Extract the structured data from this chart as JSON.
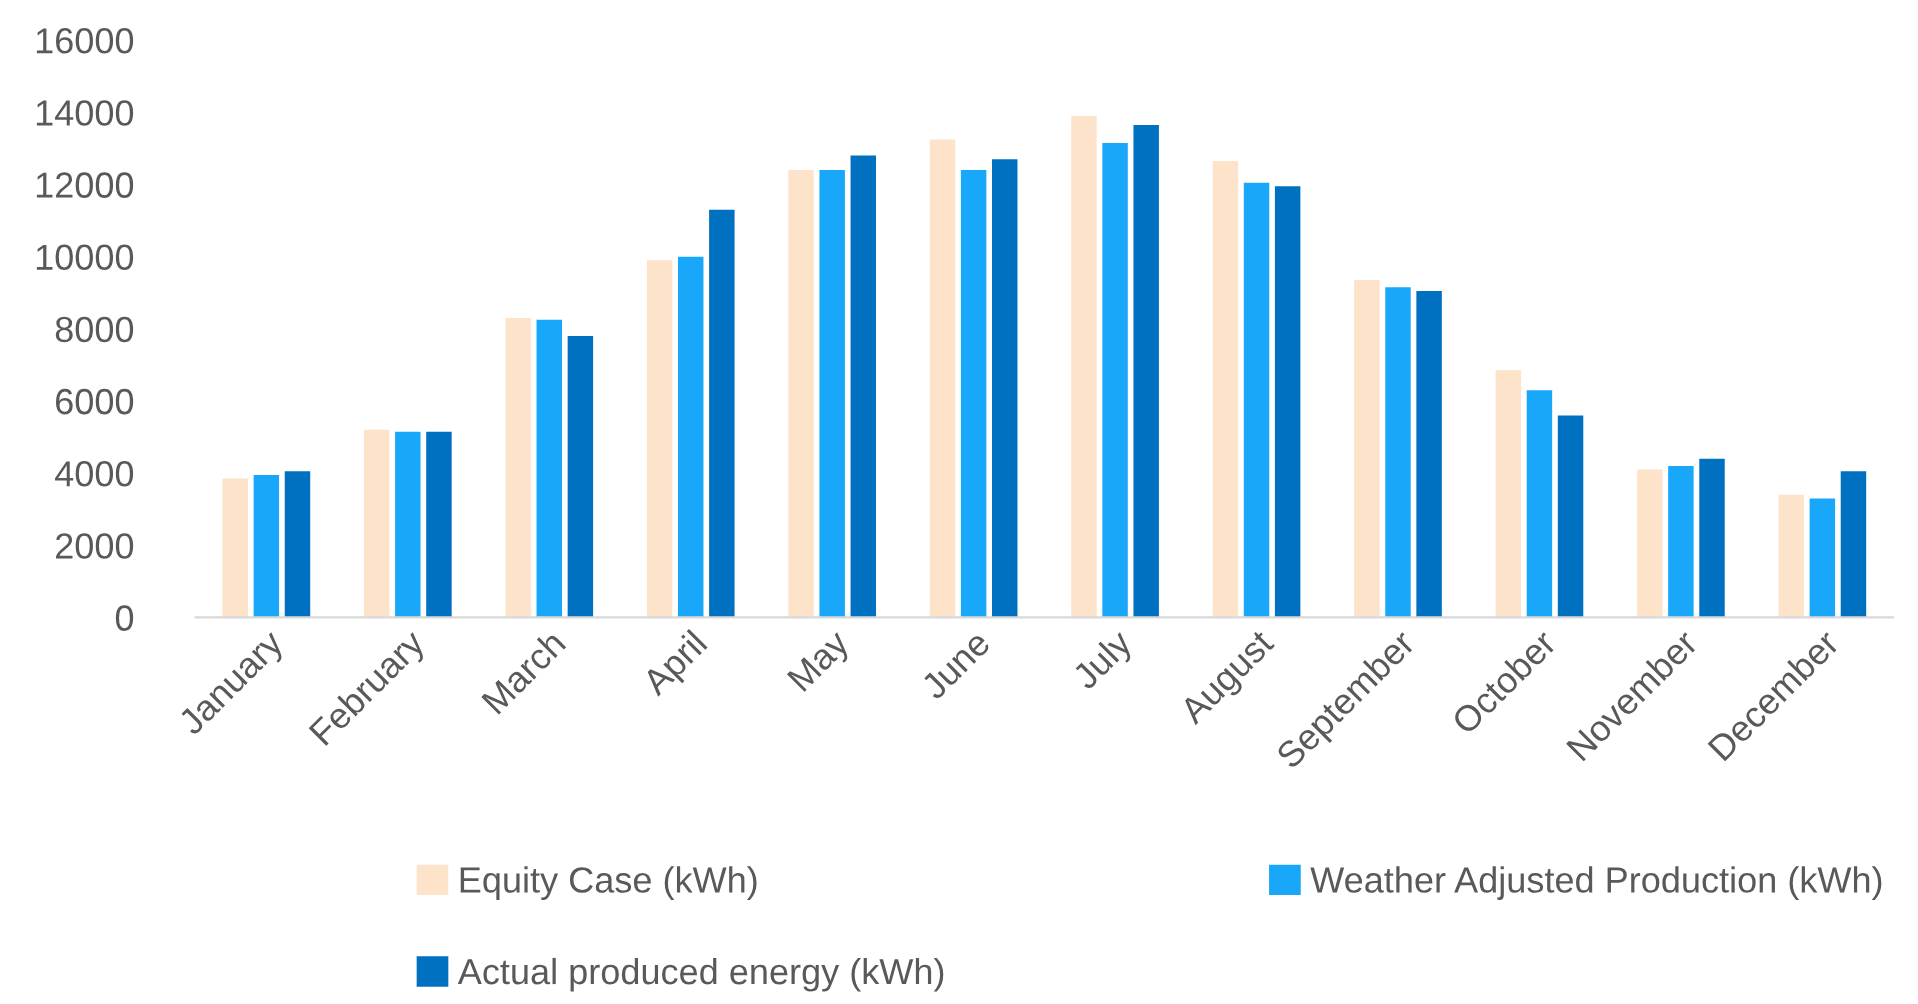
{
  "chart_data": {
    "type": "bar",
    "categories": [
      "January",
      "February",
      "March",
      "April",
      "May",
      "June",
      "July",
      "August",
      "September",
      "October",
      "November",
      "December"
    ],
    "series": [
      {
        "name": "Equity Case (kWh)",
        "color": "#fde3c9",
        "values": [
          3850,
          5200,
          8300,
          9900,
          12400,
          13250,
          13900,
          12650,
          9350,
          6850,
          4100,
          3400
        ]
      },
      {
        "name": "Weather Adjusted Production (kWh)",
        "color": "#18a7f9",
        "values": [
          3950,
          5150,
          8250,
          10000,
          12400,
          12400,
          13150,
          12050,
          9150,
          6300,
          4200,
          3300
        ]
      },
      {
        "name": "Actual produced energy (kWh)",
        "color": "#0070c0",
        "values": [
          4050,
          5150,
          7800,
          11300,
          12800,
          12700,
          13650,
          11950,
          9050,
          5600,
          4400,
          4050
        ]
      }
    ],
    "ylim": [
      0,
      16000
    ],
    "yticks": [
      0,
      2000,
      4000,
      6000,
      8000,
      10000,
      12000,
      14000,
      16000
    ],
    "grid": false,
    "legend": "bottom"
  }
}
